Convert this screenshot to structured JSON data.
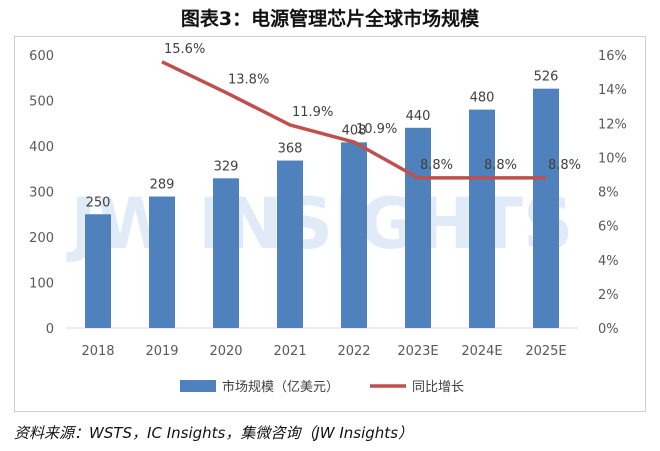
{
  "title": "图表3：电源管理芯片全球市场规模",
  "source": "资料来源：WSTS，IC Insights，集微咨询（JW Insights）",
  "watermark": "JW INSIGHTS",
  "colors": {
    "bar": "#4f81bd",
    "line": "#c0504d"
  },
  "chart_data": {
    "type": "bar",
    "categories": [
      "2018",
      "2019",
      "2020",
      "2021",
      "2022",
      "2023E",
      "2024E",
      "2025E"
    ],
    "series": [
      {
        "name": "市场规模（亿美元）",
        "axis": "left",
        "type": "bar",
        "values": [
          250,
          289,
          329,
          368,
          408,
          440,
          480,
          526
        ],
        "labels": [
          "250",
          "289",
          "329",
          "368",
          "408",
          "440",
          "480",
          "526"
        ]
      },
      {
        "name": "同比增长",
        "axis": "right",
        "type": "line",
        "values": [
          null,
          15.6,
          13.8,
          11.9,
          10.9,
          8.8,
          8.8,
          8.8
        ],
        "labels": [
          "",
          "15.6%",
          "13.8%",
          "11.9%",
          "10.9%",
          "8.8%",
          "8.8%",
          "8.8%"
        ]
      }
    ],
    "y_left": {
      "ylim": [
        0,
        600
      ],
      "ticks": [
        "0",
        "100",
        "200",
        "300",
        "400",
        "500",
        "600"
      ]
    },
    "y_right": {
      "ylim": [
        0,
        16
      ],
      "ticks": [
        "0%",
        "2%",
        "4%",
        "6%",
        "8%",
        "10%",
        "12%",
        "14%",
        "16%"
      ]
    },
    "grid": false,
    "legend": "bottom"
  }
}
